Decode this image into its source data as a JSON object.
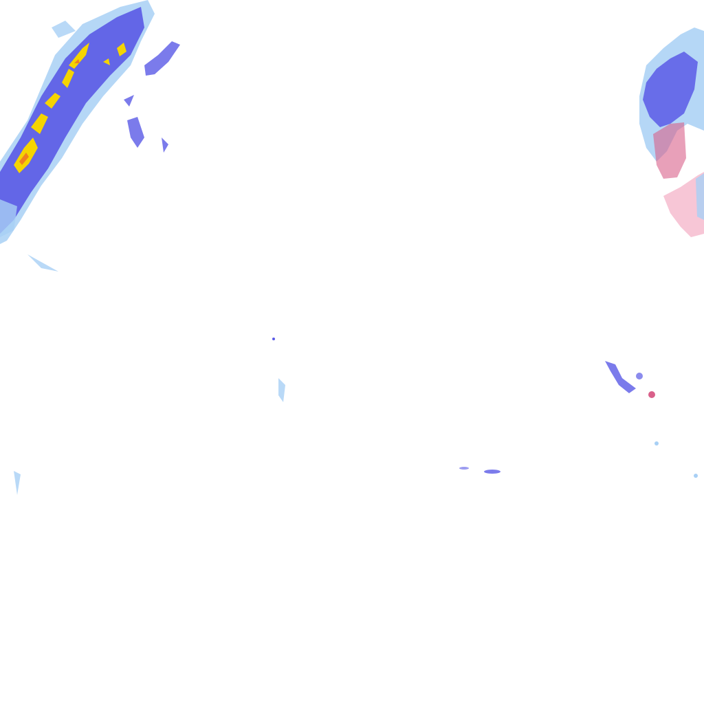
{
  "map": {
    "layer": "precipitation-radar",
    "legend_colors": {
      "light_rain": "#a8d0f5",
      "rain": "#5a5ae6",
      "moderate_rain": "#3b3bd9",
      "heavy_rain": "#f5d400",
      "very_heavy_rain": "#f08020",
      "light_mix": "#f5b8cc",
      "mix": "#d9608a"
    }
  }
}
